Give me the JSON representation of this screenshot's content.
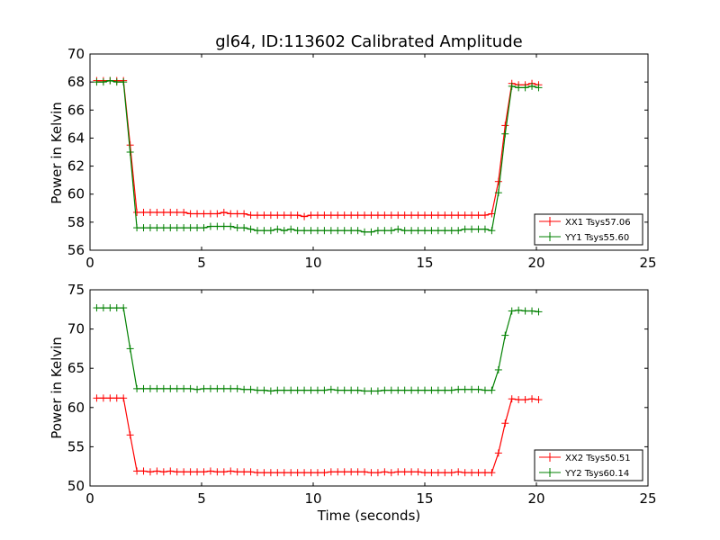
{
  "chart_data": [
    {
      "type": "line",
      "title": "gl64, ID:113602 Calibrated Amplitude",
      "xlabel": "",
      "ylabel": "Power in Kelvin",
      "xlim": [
        0,
        25
      ],
      "ylim": [
        56,
        70
      ],
      "xticks": [
        "0",
        "5",
        "10",
        "15",
        "20",
        "25"
      ],
      "yticks": [
        "56",
        "58",
        "60",
        "62",
        "64",
        "66",
        "68",
        "70"
      ],
      "grid": false,
      "legend_position": "lower-right",
      "x": [
        0.3,
        0.6,
        0.9,
        1.2,
        1.5,
        1.8,
        2.1,
        2.4,
        2.7,
        3.0,
        3.3,
        3.6,
        3.9,
        4.2,
        4.5,
        4.8,
        5.1,
        5.4,
        5.7,
        6.0,
        6.3,
        6.6,
        6.9,
        7.2,
        7.5,
        7.8,
        8.1,
        8.4,
        8.7,
        9.0,
        9.3,
        9.6,
        9.9,
        10.2,
        10.5,
        10.8,
        11.1,
        11.4,
        11.7,
        12.0,
        12.3,
        12.6,
        12.9,
        13.2,
        13.5,
        13.8,
        14.1,
        14.4,
        14.7,
        15.0,
        15.3,
        15.6,
        15.9,
        16.2,
        16.5,
        16.8,
        17.1,
        17.4,
        17.7,
        18.0,
        18.3,
        18.6,
        18.9,
        19.2,
        19.5,
        19.8,
        20.1
      ],
      "series": [
        {
          "name": "XX1 Tsys57.06",
          "color": "#ff0000",
          "values": [
            68.1,
            68.1,
            68.1,
            68.1,
            68.1,
            63.5,
            58.7,
            58.7,
            58.7,
            58.7,
            58.7,
            58.7,
            58.7,
            58.7,
            58.6,
            58.6,
            58.6,
            58.6,
            58.6,
            58.7,
            58.6,
            58.6,
            58.6,
            58.5,
            58.5,
            58.5,
            58.5,
            58.5,
            58.5,
            58.5,
            58.5,
            58.4,
            58.5,
            58.5,
            58.5,
            58.5,
            58.5,
            58.5,
            58.5,
            58.5,
            58.5,
            58.5,
            58.5,
            58.5,
            58.5,
            58.5,
            58.5,
            58.5,
            58.5,
            58.5,
            58.5,
            58.5,
            58.5,
            58.5,
            58.5,
            58.5,
            58.5,
            58.5,
            58.5,
            58.6,
            60.9,
            64.9,
            67.9,
            67.8,
            67.8,
            67.9,
            67.8
          ]
        },
        {
          "name": "YY1 Tsys55.60",
          "color": "#008000",
          "values": [
            68.0,
            68.0,
            68.1,
            68.0,
            68.0,
            63.0,
            57.6,
            57.6,
            57.6,
            57.6,
            57.6,
            57.6,
            57.6,
            57.6,
            57.6,
            57.6,
            57.6,
            57.7,
            57.7,
            57.7,
            57.7,
            57.6,
            57.6,
            57.5,
            57.4,
            57.4,
            57.4,
            57.5,
            57.4,
            57.5,
            57.4,
            57.4,
            57.4,
            57.4,
            57.4,
            57.4,
            57.4,
            57.4,
            57.4,
            57.4,
            57.3,
            57.3,
            57.4,
            57.4,
            57.4,
            57.5,
            57.4,
            57.4,
            57.4,
            57.4,
            57.4,
            57.4,
            57.4,
            57.4,
            57.4,
            57.5,
            57.5,
            57.5,
            57.5,
            57.4,
            60.1,
            64.3,
            67.7,
            67.6,
            67.6,
            67.7,
            67.6
          ]
        }
      ]
    },
    {
      "type": "line",
      "title": "",
      "xlabel": "Time (seconds)",
      "ylabel": "Power in Kelvin",
      "xlim": [
        0,
        25
      ],
      "ylim": [
        50,
        75
      ],
      "xticks": [
        "0",
        "5",
        "10",
        "15",
        "20",
        "25"
      ],
      "yticks": [
        "50",
        "55",
        "60",
        "65",
        "70",
        "75"
      ],
      "grid": false,
      "legend_position": "lower-right",
      "x": [
        0.3,
        0.6,
        0.9,
        1.2,
        1.5,
        1.8,
        2.1,
        2.4,
        2.7,
        3.0,
        3.3,
        3.6,
        3.9,
        4.2,
        4.5,
        4.8,
        5.1,
        5.4,
        5.7,
        6.0,
        6.3,
        6.6,
        6.9,
        7.2,
        7.5,
        7.8,
        8.1,
        8.4,
        8.7,
        9.0,
        9.3,
        9.6,
        9.9,
        10.2,
        10.5,
        10.8,
        11.1,
        11.4,
        11.7,
        12.0,
        12.3,
        12.6,
        12.9,
        13.2,
        13.5,
        13.8,
        14.1,
        14.4,
        14.7,
        15.0,
        15.3,
        15.6,
        15.9,
        16.2,
        16.5,
        16.8,
        17.1,
        17.4,
        17.7,
        18.0,
        18.3,
        18.6,
        18.9,
        19.2,
        19.5,
        19.8,
        20.1
      ],
      "series": [
        {
          "name": "XX2 Tsys50.51",
          "color": "#ff0000",
          "values": [
            61.2,
            61.2,
            61.2,
            61.2,
            61.2,
            56.5,
            51.9,
            51.9,
            51.8,
            51.9,
            51.8,
            51.9,
            51.8,
            51.8,
            51.8,
            51.8,
            51.8,
            51.9,
            51.8,
            51.8,
            51.9,
            51.8,
            51.8,
            51.8,
            51.7,
            51.7,
            51.7,
            51.7,
            51.7,
            51.7,
            51.7,
            51.7,
            51.7,
            51.7,
            51.7,
            51.8,
            51.8,
            51.8,
            51.8,
            51.8,
            51.8,
            51.7,
            51.7,
            51.8,
            51.7,
            51.8,
            51.8,
            51.8,
            51.8,
            51.7,
            51.7,
            51.7,
            51.7,
            51.7,
            51.8,
            51.7,
            51.7,
            51.7,
            51.7,
            51.7,
            54.2,
            58.0,
            61.1,
            61.0,
            61.0,
            61.1,
            61.0
          ]
        },
        {
          "name": "YY2 Tsys60.14",
          "color": "#008000",
          "values": [
            72.7,
            72.7,
            72.7,
            72.7,
            72.7,
            67.5,
            62.4,
            62.4,
            62.4,
            62.4,
            62.4,
            62.4,
            62.4,
            62.4,
            62.4,
            62.3,
            62.4,
            62.4,
            62.4,
            62.4,
            62.4,
            62.4,
            62.3,
            62.3,
            62.2,
            62.2,
            62.1,
            62.2,
            62.2,
            62.2,
            62.2,
            62.2,
            62.2,
            62.2,
            62.2,
            62.3,
            62.2,
            62.2,
            62.2,
            62.2,
            62.1,
            62.1,
            62.1,
            62.2,
            62.2,
            62.2,
            62.2,
            62.2,
            62.2,
            62.2,
            62.2,
            62.2,
            62.2,
            62.2,
            62.3,
            62.3,
            62.3,
            62.3,
            62.2,
            62.2,
            64.8,
            69.2,
            72.3,
            72.4,
            72.3,
            72.3,
            72.2
          ]
        }
      ]
    }
  ]
}
